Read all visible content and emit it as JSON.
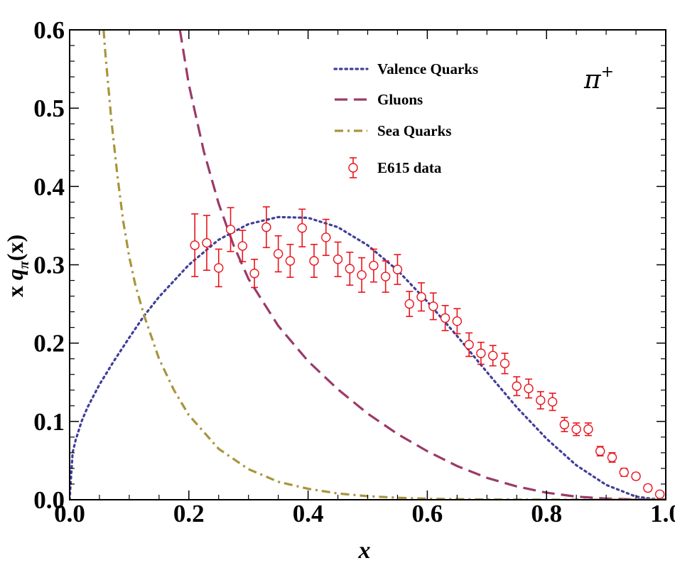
{
  "chart_data": {
    "type": "line",
    "xlabel": "x",
    "ylabel": "x qπ(x)",
    "ylabel_parts": {
      "pre": "x ",
      "q": "q",
      "sub": "π",
      "post": "(x)"
    },
    "annotation": "π",
    "annotation_sup": "+",
    "xlim": [
      0.0,
      1.0
    ],
    "ylim": [
      0.0,
      0.6
    ],
    "x_ticks": [
      0.0,
      0.2,
      0.4,
      0.6,
      0.8,
      1.0
    ],
    "y_ticks": [
      0.0,
      0.1,
      0.2,
      0.3,
      0.4,
      0.5,
      0.6
    ],
    "x_tick_labels": [
      "0.0",
      "0.2",
      "0.4",
      "0.6",
      "0.8",
      "1.0"
    ],
    "y_tick_labels": [
      "0.0",
      "0.1",
      "0.2",
      "0.3",
      "0.4",
      "0.5",
      "0.6"
    ],
    "legend_position": "top-right",
    "series": [
      {
        "name": "Valence Quarks",
        "kind": "dotted",
        "color": "#3f3f9a",
        "x": [
          0.0,
          0.005,
          0.01,
          0.02,
          0.03,
          0.05,
          0.075,
          0.1,
          0.125,
          0.15,
          0.2,
          0.25,
          0.3,
          0.35,
          0.4,
          0.45,
          0.5,
          0.55,
          0.6,
          0.65,
          0.7,
          0.75,
          0.8,
          0.85,
          0.9,
          0.95,
          0.98,
          1.0
        ],
        "y": [
          0.0,
          0.06,
          0.076,
          0.1,
          0.118,
          0.147,
          0.178,
          0.207,
          0.235,
          0.259,
          0.3,
          0.332,
          0.352,
          0.361,
          0.36,
          0.348,
          0.325,
          0.293,
          0.253,
          0.209,
          0.163,
          0.118,
          0.078,
          0.044,
          0.019,
          0.004,
          0.001,
          0.0
        ]
      },
      {
        "name": "Gluons",
        "kind": "dashed",
        "color": "#9a3a6a",
        "x": [
          0.185,
          0.2,
          0.225,
          0.25,
          0.275,
          0.3,
          0.35,
          0.4,
          0.45,
          0.5,
          0.55,
          0.6,
          0.65,
          0.7,
          0.75,
          0.8,
          0.85,
          0.9,
          0.95,
          1.0
        ],
        "y": [
          0.6,
          0.53,
          0.445,
          0.378,
          0.325,
          0.282,
          0.222,
          0.177,
          0.141,
          0.11,
          0.084,
          0.062,
          0.043,
          0.028,
          0.017,
          0.009,
          0.004,
          0.0015,
          0.0004,
          0.0
        ]
      },
      {
        "name": "Sea Quarks",
        "kind": "dashdot",
        "color": "#a8953c",
        "x": [
          0.057,
          0.06,
          0.07,
          0.08,
          0.09,
          0.1,
          0.11,
          0.125,
          0.15,
          0.175,
          0.2,
          0.25,
          0.3,
          0.35,
          0.4,
          0.45,
          0.5,
          0.55,
          0.6,
          0.7,
          0.8,
          0.9,
          1.0
        ],
        "y": [
          0.6,
          0.57,
          0.485,
          0.415,
          0.355,
          0.31,
          0.275,
          0.235,
          0.18,
          0.14,
          0.108,
          0.065,
          0.039,
          0.023,
          0.014,
          0.008,
          0.0045,
          0.0025,
          0.0013,
          0.0003,
          5e-05,
          0.0,
          0.0
        ]
      },
      {
        "name": "E615 data",
        "kind": "points",
        "color": "#e8141c",
        "x": [
          0.21,
          0.23,
          0.25,
          0.27,
          0.29,
          0.31,
          0.33,
          0.35,
          0.37,
          0.39,
          0.41,
          0.43,
          0.45,
          0.47,
          0.49,
          0.51,
          0.53,
          0.55,
          0.57,
          0.59,
          0.61,
          0.63,
          0.65,
          0.67,
          0.69,
          0.71,
          0.73,
          0.75,
          0.77,
          0.79,
          0.81,
          0.83,
          0.85,
          0.87,
          0.89,
          0.91,
          0.93,
          0.95,
          0.97,
          0.99
        ],
        "y": [
          0.325,
          0.328,
          0.296,
          0.345,
          0.324,
          0.289,
          0.348,
          0.314,
          0.305,
          0.347,
          0.305,
          0.335,
          0.307,
          0.295,
          0.287,
          0.299,
          0.285,
          0.294,
          0.25,
          0.259,
          0.247,
          0.232,
          0.228,
          0.198,
          0.187,
          0.184,
          0.174,
          0.145,
          0.142,
          0.127,
          0.125,
          0.096,
          0.09,
          0.09,
          0.062,
          0.054,
          0.035,
          0.03,
          0.015,
          0.007
        ],
        "err": [
          0.04,
          0.035,
          0.024,
          0.028,
          0.02,
          0.018,
          0.026,
          0.023,
          0.021,
          0.024,
          0.021,
          0.023,
          0.022,
          0.021,
          0.022,
          0.021,
          0.02,
          0.019,
          0.016,
          0.018,
          0.017,
          0.016,
          0.016,
          0.015,
          0.014,
          0.013,
          0.013,
          0.012,
          0.012,
          0.011,
          0.011,
          0.009,
          0.008,
          0.008,
          0.006,
          0.006,
          0.005,
          0.004,
          0.004,
          0.003
        ]
      }
    ]
  }
}
